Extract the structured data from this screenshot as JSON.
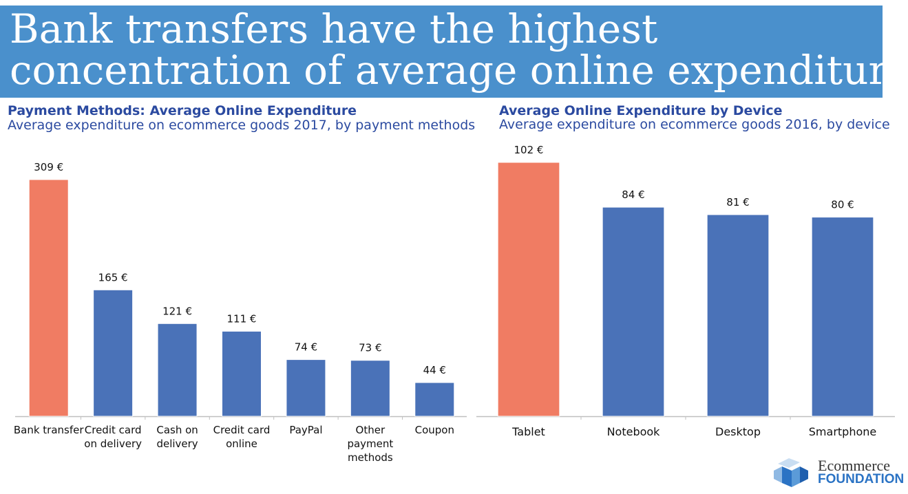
{
  "headline": {
    "line1": "Bank transfers have the highest",
    "line2": "concentration of average online expenditure"
  },
  "colors": {
    "banner": "#4a90cc",
    "highlight": "#f07c63",
    "bar": "#4a72b8",
    "title": "#2b4aa0"
  },
  "chart_data": [
    {
      "type": "bar",
      "title": "Payment Methods: Average Online Expenditure",
      "subtitle": "Average expenditure on ecommerce goods 2017, by payment methods",
      "categories": [
        [
          "Bank transfer"
        ],
        [
          "Credit card",
          "on delivery"
        ],
        [
          "Cash on",
          "delivery"
        ],
        [
          "Credit card",
          "online"
        ],
        [
          "PayPal"
        ],
        [
          "Other",
          "payment",
          "methods"
        ],
        [
          "Coupon"
        ]
      ],
      "values": [
        309,
        165,
        121,
        111,
        74,
        73,
        44
      ],
      "value_labels": [
        "309 €",
        "165 €",
        "121 €",
        "111 €",
        "74 €",
        "73 €",
        "44 €"
      ],
      "highlight_index": 0,
      "ylim": [
        0,
        309
      ],
      "grid": false,
      "xlabel": "",
      "ylabel": ""
    },
    {
      "type": "bar",
      "title": "Average Online Expenditure by Device",
      "subtitle": "Average expenditure on ecommerce goods 2016, by device",
      "categories": [
        [
          "Tablet"
        ],
        [
          "Notebook"
        ],
        [
          "Desktop"
        ],
        [
          "Smartphone"
        ]
      ],
      "values": [
        102,
        84,
        81,
        80
      ],
      "value_labels": [
        "102 €",
        "84 €",
        "81 €",
        "80 €"
      ],
      "highlight_index": 0,
      "ylim": [
        0,
        102
      ],
      "grid": false,
      "xlabel": "",
      "ylabel": ""
    }
  ],
  "logo": {
    "name": "Ecommerce",
    "sub": "FOUNDATION",
    "icon": "cube-logo-icon"
  }
}
